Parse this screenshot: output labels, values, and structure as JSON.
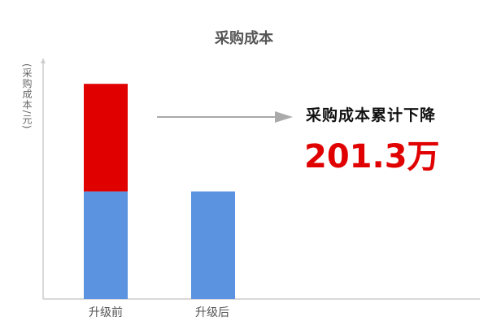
{
  "chart_data": {
    "type": "bar",
    "stacked": true,
    "title": "采购成本",
    "ylabel": "(采购成本/元)",
    "xlabel": "",
    "categories": [
      "升级前",
      "升级后"
    ],
    "series": [
      {
        "values": [
          201.3,
          201.3
        ],
        "color": "#5b93e0"
      },
      {
        "values": [
          201.3,
          0
        ],
        "color": "#e00000"
      }
    ],
    "ylim": [
      0,
      450
    ],
    "grid": false,
    "legend": "none",
    "annotation": {
      "text": "采购成本累计下降",
      "value": "201.3万",
      "value_color": "#e00000",
      "arrow_color": "#aaaaaa"
    }
  }
}
